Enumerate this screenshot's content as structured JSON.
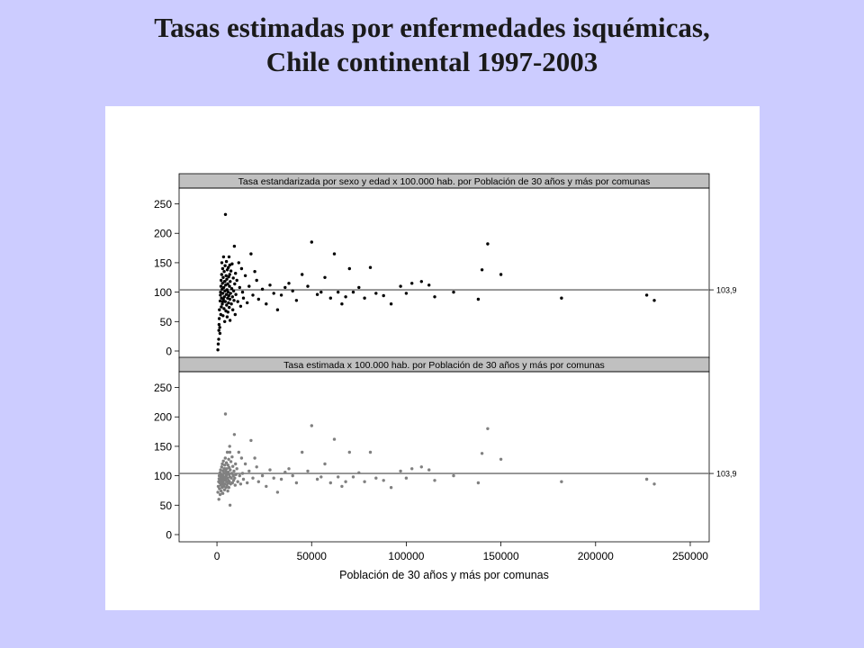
{
  "slide": {
    "title_line1": "Tasas estimadas por enfermedades isquémicas,",
    "title_line2": "Chile continental 1997-2003"
  },
  "chart_data": {
    "type": "scatter",
    "xlabel": "Población de 30 años y más por comunas",
    "xlim": [
      -20000,
      260000
    ],
    "x_ticks": [
      0,
      50000,
      100000,
      150000,
      200000,
      250000
    ],
    "y_ticks": [
      0,
      50,
      100,
      150,
      200,
      250
    ],
    "ylim": [
      0,
      260
    ],
    "grid": false,
    "panels": [
      {
        "title": "Tasa estandarizada por sexo y edad x 100.000 hab. por Población de 30 años y más por comunas",
        "reference_line": 103.9,
        "reference_label": "103,9",
        "point_color": "#000000",
        "points": [
          [
            500,
            2
          ],
          [
            700,
            12
          ],
          [
            900,
            20
          ],
          [
            1000,
            35
          ],
          [
            1100,
            45
          ],
          [
            1200,
            55
          ],
          [
            1300,
            70
          ],
          [
            1500,
            40
          ],
          [
            1600,
            30
          ],
          [
            1700,
            85
          ],
          [
            1800,
            95
          ],
          [
            1900,
            100
          ],
          [
            2000,
            62
          ],
          [
            2100,
            110
          ],
          [
            2200,
            120
          ],
          [
            2300,
            75
          ],
          [
            2400,
            90
          ],
          [
            2500,
            130
          ],
          [
            2600,
            150
          ],
          [
            2700,
            105
          ],
          [
            2800,
            80
          ],
          [
            2900,
            115
          ],
          [
            3000,
            140
          ],
          [
            3100,
            98
          ],
          [
            3200,
            60
          ],
          [
            3300,
            125
          ],
          [
            3400,
            88
          ],
          [
            3500,
            160
          ],
          [
            3600,
            108
          ],
          [
            3700,
            72
          ],
          [
            3800,
            135
          ],
          [
            3900,
            92
          ],
          [
            4000,
            118
          ],
          [
            4100,
            50
          ],
          [
            4200,
            102
          ],
          [
            4300,
            145
          ],
          [
            4400,
            84
          ],
          [
            4500,
            232
          ],
          [
            4600,
            112
          ],
          [
            4700,
            68
          ],
          [
            4800,
            128
          ],
          [
            4900,
            96
          ],
          [
            5000,
            152
          ],
          [
            5100,
            78
          ],
          [
            5200,
            122
          ],
          [
            5300,
            104
          ],
          [
            5400,
            58
          ],
          [
            5500,
            138
          ],
          [
            5600,
            90
          ],
          [
            5700,
            114
          ],
          [
            5800,
            66
          ],
          [
            5900,
            100
          ],
          [
            6000,
            142
          ],
          [
            6100,
            82
          ],
          [
            6200,
            126
          ],
          [
            6300,
            94
          ],
          [
            6400,
            160
          ],
          [
            6500,
            74
          ],
          [
            6600,
            110
          ],
          [
            6700,
            130
          ],
          [
            6800,
            88
          ],
          [
            6900,
            52
          ],
          [
            7000,
            118
          ],
          [
            7200,
            98
          ],
          [
            7400,
            136
          ],
          [
            7600,
            80
          ],
          [
            7800,
            106
          ],
          [
            8000,
            148
          ],
          [
            8200,
            92
          ],
          [
            8400,
            70
          ],
          [
            8600,
            124
          ],
          [
            8800,
            102
          ],
          [
            9000,
            86
          ],
          [
            9200,
            178
          ],
          [
            9400,
            114
          ],
          [
            9600,
            62
          ],
          [
            9800,
            132
          ],
          [
            10000,
            96
          ],
          [
            10500,
            120
          ],
          [
            11000,
            84
          ],
          [
            11500,
            150
          ],
          [
            12000,
            108
          ],
          [
            12500,
            76
          ],
          [
            13000,
            140
          ],
          [
            13500,
            100
          ],
          [
            14000,
            90
          ],
          [
            15000,
            128
          ],
          [
            16000,
            82
          ],
          [
            17000,
            110
          ],
          [
            18000,
            165
          ],
          [
            19000,
            95
          ],
          [
            20000,
            135
          ],
          [
            21000,
            120
          ],
          [
            22000,
            88
          ],
          [
            24000,
            105
          ],
          [
            26000,
            80
          ],
          [
            28000,
            112
          ],
          [
            30000,
            98
          ],
          [
            32000,
            70
          ],
          [
            34000,
            95
          ],
          [
            36000,
            108
          ],
          [
            38000,
            115
          ],
          [
            40000,
            102
          ],
          [
            42000,
            86
          ],
          [
            45000,
            130
          ],
          [
            48000,
            110
          ],
          [
            50000,
            185
          ],
          [
            53000,
            96
          ],
          [
            55000,
            100
          ],
          [
            57000,
            125
          ],
          [
            60000,
            90
          ],
          [
            62000,
            165
          ],
          [
            64000,
            100
          ],
          [
            66000,
            80
          ],
          [
            68000,
            92
          ],
          [
            70000,
            140
          ],
          [
            72000,
            100
          ],
          [
            75000,
            108
          ],
          [
            78000,
            90
          ],
          [
            81000,
            142
          ],
          [
            84000,
            98
          ],
          [
            88000,
            94
          ],
          [
            92000,
            80
          ],
          [
            97000,
            110
          ],
          [
            100000,
            98
          ],
          [
            103000,
            115
          ],
          [
            108000,
            118
          ],
          [
            112000,
            112
          ],
          [
            115000,
            92
          ],
          [
            125000,
            100
          ],
          [
            138000,
            88
          ],
          [
            140000,
            138
          ],
          [
            143000,
            182
          ],
          [
            150000,
            130
          ],
          [
            182000,
            90
          ],
          [
            227000,
            95
          ],
          [
            231000,
            86
          ],
          [
            4200,
            118
          ],
          [
            3100,
            84
          ],
          [
            6800,
            146
          ]
        ]
      },
      {
        "title": "Tasa estimada x 100.000 hab. por Población de 30 años y más por comunas",
        "reference_line": 103.9,
        "reference_label": "103,9",
        "point_color": "#808080",
        "points": [
          [
            500,
            72
          ],
          [
            700,
            82
          ],
          [
            900,
            90
          ],
          [
            1000,
            60
          ],
          [
            1100,
            95
          ],
          [
            1200,
            100
          ],
          [
            1300,
            78
          ],
          [
            1500,
            88
          ],
          [
            1600,
            105
          ],
          [
            1700,
            68
          ],
          [
            1800,
            92
          ],
          [
            1900,
            110
          ],
          [
            2000,
            84
          ],
          [
            2100,
            98
          ],
          [
            2200,
            74
          ],
          [
            2300,
            102
          ],
          [
            2400,
            86
          ],
          [
            2500,
            115
          ],
          [
            2600,
            94
          ],
          [
            2700,
            80
          ],
          [
            2800,
            120
          ],
          [
            2900,
            90
          ],
          [
            3000,
            100
          ],
          [
            3100,
            70
          ],
          [
            3200,
            108
          ],
          [
            3300,
            88
          ],
          [
            3400,
            125
          ],
          [
            3500,
            96
          ],
          [
            3600,
            82
          ],
          [
            3700,
            112
          ],
          [
            3800,
            92
          ],
          [
            3900,
            104
          ],
          [
            4000,
            76
          ],
          [
            4100,
            118
          ],
          [
            4200,
            98
          ],
          [
            4300,
            86
          ],
          [
            4400,
            130
          ],
          [
            4500,
            205
          ],
          [
            4600,
            94
          ],
          [
            4700,
            108
          ],
          [
            4800,
            80
          ],
          [
            4900,
            100
          ],
          [
            5000,
            122
          ],
          [
            5100,
            90
          ],
          [
            5200,
            112
          ],
          [
            5300,
            84
          ],
          [
            5400,
            104
          ],
          [
            5500,
            140
          ],
          [
            5600,
            96
          ],
          [
            5700,
            74
          ],
          [
            5800,
            118
          ],
          [
            5900,
            88
          ],
          [
            6000,
            106
          ],
          [
            6100,
            92
          ],
          [
            6200,
            128
          ],
          [
            6300,
            80
          ],
          [
            6400,
            102
          ],
          [
            6500,
            114
          ],
          [
            6600,
            90
          ],
          [
            6700,
            150
          ],
          [
            6800,
            98
          ],
          [
            6900,
            50
          ],
          [
            7000,
            110
          ],
          [
            7200,
            86
          ],
          [
            7400,
            124
          ],
          [
            7600,
            96
          ],
          [
            7800,
            104
          ],
          [
            8000,
            132
          ],
          [
            8200,
            88
          ],
          [
            8400,
            116
          ],
          [
            8600,
            100
          ],
          [
            8800,
            92
          ],
          [
            9000,
            108
          ],
          [
            9200,
            170
          ],
          [
            9400,
            96
          ],
          [
            9600,
            84
          ],
          [
            9800,
            120
          ],
          [
            10000,
            102
          ],
          [
            10500,
            112
          ],
          [
            11000,
            90
          ],
          [
            11500,
            140
          ],
          [
            12000,
            100
          ],
          [
            12500,
            86
          ],
          [
            13000,
            130
          ],
          [
            13500,
            104
          ],
          [
            14000,
            94
          ],
          [
            15000,
            120
          ],
          [
            16000,
            88
          ],
          [
            17000,
            108
          ],
          [
            18000,
            160
          ],
          [
            19000,
            96
          ],
          [
            20000,
            130
          ],
          [
            21000,
            115
          ],
          [
            22000,
            90
          ],
          [
            24000,
            100
          ],
          [
            26000,
            82
          ],
          [
            28000,
            110
          ],
          [
            30000,
            96
          ],
          [
            32000,
            72
          ],
          [
            34000,
            94
          ],
          [
            36000,
            106
          ],
          [
            38000,
            112
          ],
          [
            40000,
            100
          ],
          [
            42000,
            88
          ],
          [
            45000,
            140
          ],
          [
            48000,
            108
          ],
          [
            50000,
            185
          ],
          [
            53000,
            94
          ],
          [
            55000,
            98
          ],
          [
            57000,
            120
          ],
          [
            60000,
            88
          ],
          [
            62000,
            162
          ],
          [
            64000,
            98
          ],
          [
            66000,
            82
          ],
          [
            68000,
            90
          ],
          [
            70000,
            140
          ],
          [
            72000,
            98
          ],
          [
            75000,
            105
          ],
          [
            78000,
            90
          ],
          [
            81000,
            140
          ],
          [
            84000,
            96
          ],
          [
            88000,
            92
          ],
          [
            92000,
            80
          ],
          [
            97000,
            108
          ],
          [
            100000,
            96
          ],
          [
            103000,
            112
          ],
          [
            108000,
            115
          ],
          [
            112000,
            110
          ],
          [
            115000,
            92
          ],
          [
            125000,
            100
          ],
          [
            138000,
            88
          ],
          [
            140000,
            138
          ],
          [
            143000,
            180
          ],
          [
            150000,
            128
          ],
          [
            182000,
            90
          ],
          [
            227000,
            94
          ],
          [
            231000,
            86
          ],
          [
            4200,
            112
          ],
          [
            3100,
            86
          ],
          [
            6800,
            140
          ]
        ]
      }
    ]
  }
}
